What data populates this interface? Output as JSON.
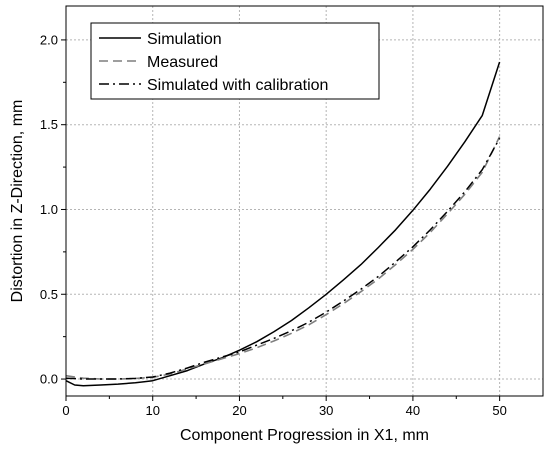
{
  "chart_data": {
    "type": "line",
    "title": "",
    "xlabel": "Component Progression in X1, mm",
    "ylabel": "Distortion in Z-Direction, mm",
    "xlim": [
      0,
      55
    ],
    "ylim": [
      -0.1,
      2.2
    ],
    "xticks": [
      "0",
      "10",
      "20",
      "30",
      "40",
      "50"
    ],
    "yticks": [
      "0.0",
      "0.5",
      "1.0",
      "1.5",
      "2.0"
    ],
    "grid": true,
    "legend_position": "top-left",
    "series": [
      {
        "name": "Simulation",
        "style": "solid",
        "color": "#000000",
        "x": [
          0,
          1,
          2,
          4,
          6,
          8,
          10,
          12,
          14,
          16,
          18,
          20,
          22,
          24,
          26,
          28,
          30,
          32,
          34,
          36,
          38,
          40,
          42,
          44,
          46,
          48,
          50
        ],
        "y": [
          -0.01,
          -0.035,
          -0.04,
          -0.035,
          -0.03,
          -0.022,
          -0.01,
          0.02,
          0.05,
          0.09,
          0.125,
          0.17,
          0.22,
          0.28,
          0.345,
          0.42,
          0.5,
          0.585,
          0.675,
          0.775,
          0.88,
          0.995,
          1.12,
          1.255,
          1.4,
          1.555,
          1.87
        ]
      },
      {
        "name": "Measured",
        "style": "dashed",
        "color": "#7f7f7f",
        "x": [
          0,
          2,
          4,
          6,
          8,
          10,
          12,
          14,
          16,
          18,
          20,
          22,
          24,
          26,
          28,
          30,
          32,
          34,
          36,
          38,
          40,
          42,
          44,
          46,
          48,
          50
        ],
        "y": [
          0.02,
          0.005,
          0.0,
          0.0,
          0.003,
          0.01,
          0.03,
          0.06,
          0.09,
          0.12,
          0.15,
          0.185,
          0.225,
          0.27,
          0.32,
          0.38,
          0.445,
          0.515,
          0.59,
          0.675,
          0.765,
          0.865,
          0.975,
          1.09,
          1.22,
          1.43
        ]
      },
      {
        "name": "Simulated with calibration",
        "style": "dashdot",
        "color": "#000000",
        "x": [
          0,
          2,
          4,
          6,
          8,
          10,
          12,
          14,
          16,
          18,
          20,
          22,
          24,
          26,
          28,
          30,
          32,
          34,
          36,
          38,
          40,
          42,
          44,
          46,
          48,
          50
        ],
        "y": [
          0.005,
          0.0,
          0.0,
          0.0,
          0.004,
          0.012,
          0.035,
          0.065,
          0.1,
          0.13,
          0.16,
          0.2,
          0.24,
          0.285,
          0.335,
          0.395,
          0.46,
          0.53,
          0.605,
          0.69,
          0.78,
          0.88,
          0.99,
          1.105,
          1.235,
          1.42
        ]
      }
    ]
  }
}
